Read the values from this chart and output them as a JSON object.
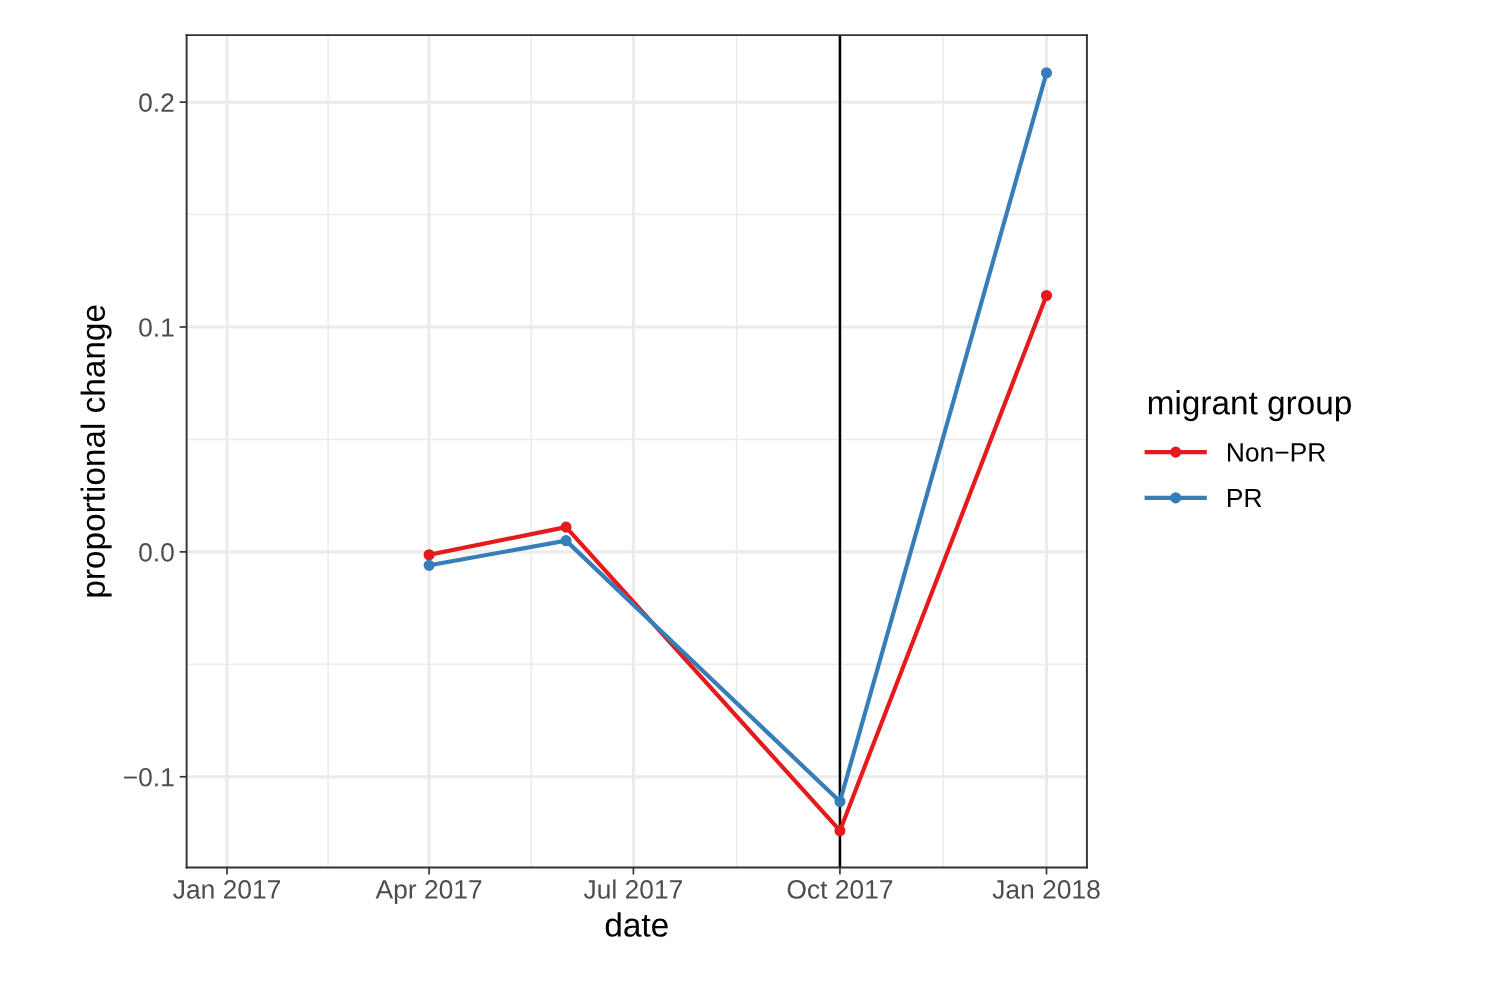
{
  "chart_data": {
    "type": "line",
    "xlabel": "date",
    "ylabel": "proportional change",
    "legend_title": "migrant group",
    "x": [
      "2017-04-01",
      "2017-06-01",
      "2017-10-01",
      "2018-01-01"
    ],
    "series": [
      {
        "name": "Non−PR",
        "color": "#e41a1c",
        "values": [
          -0.0013,
          0.011,
          -0.124,
          0.114
        ]
      },
      {
        "name": "PR",
        "color": "#377eb8",
        "values": [
          -0.006,
          0.005,
          -0.111,
          0.213
        ]
      }
    ],
    "xlim": [
      "2016-12-14",
      "2018-01-19"
    ],
    "xticks": [
      {
        "value": "2017-01-01",
        "label": "Jan 2017"
      },
      {
        "value": "2017-04-01",
        "label": "Apr 2017"
      },
      {
        "value": "2017-07-01",
        "label": "Jul 2017"
      },
      {
        "value": "2017-10-01",
        "label": "Oct 2017"
      },
      {
        "value": "2018-01-01",
        "label": "Jan 2018"
      }
    ],
    "ylim": [
      -0.1404,
      0.2298
    ],
    "yticks": [
      {
        "value": -0.1,
        "label": "−0.1"
      },
      {
        "value": 0.0,
        "label": "0.0"
      },
      {
        "value": 0.1,
        "label": "0.1"
      },
      {
        "value": 0.2,
        "label": "0.2"
      }
    ],
    "ref_lines": [
      {
        "axis": "x",
        "value": "2017-10-01",
        "color": "#000000"
      }
    ],
    "grid": true,
    "legend": "right",
    "marker": "circle",
    "line_style": "solid"
  }
}
